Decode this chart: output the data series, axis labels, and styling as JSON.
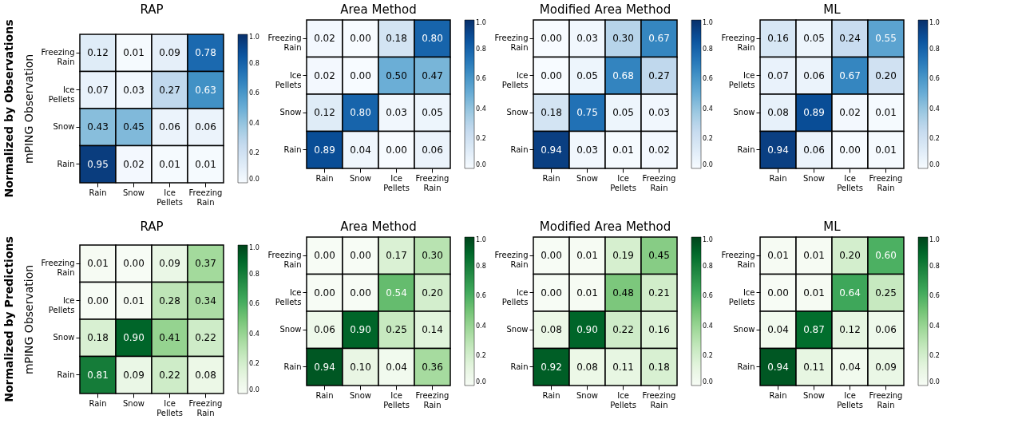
{
  "chart_data": [
    {
      "type": "heatmap",
      "title": "RAP",
      "ylabel": "mPING Observation",
      "annotations": [
        "Normalized by Observations"
      ],
      "categories": [
        "Rain",
        "Snow",
        "Ice Pellets",
        "Freezing Rain"
      ],
      "y_categories": [
        "Freezing Rain",
        "Ice Pellets",
        "Snow",
        "Rain"
      ],
      "data_labels": true,
      "cells": [
        [
          0.12,
          0.01,
          0.09,
          0.78
        ],
        [
          0.07,
          0.03,
          0.27,
          0.63
        ],
        [
          0.43,
          0.45,
          0.06,
          0.06
        ],
        [
          0.95,
          0.02,
          0.01,
          0.01
        ]
      ],
      "cell_labels": [
        [
          "0.12",
          "0.01",
          "0.09",
          "0.78"
        ],
        [
          "0.07",
          "0.03",
          "0.27",
          "0.63"
        ],
        [
          "0.43",
          "0.45",
          "0.06",
          "0.06"
        ],
        [
          "0.95",
          "0.02",
          "0.01",
          "0.01"
        ]
      ],
      "clim": [
        0,
        1
      ],
      "cticks": [
        {
          "value": 0,
          "label": "0.0"
        },
        {
          "value": 0.2,
          "label": "0.2"
        },
        {
          "value": 0.4,
          "label": "0.4"
        },
        {
          "value": 0.6,
          "label": "0.6"
        },
        {
          "value": 0.8,
          "label": "0.8"
        },
        {
          "value": 1,
          "label": "1.0"
        }
      ],
      "colors": [
        "#f7fbff",
        "#deebf7",
        "#c6dbef",
        "#9ecae1",
        "#6baed6",
        "#4292c6",
        "#2171b5",
        "#08519c",
        "#08306b"
      ]
    },
    {
      "type": "heatmap",
      "title": "Area Method",
      "categories": [
        "Rain",
        "Snow",
        "Ice Pellets",
        "Freezing Rain"
      ],
      "y_categories": [
        "Freezing Rain",
        "Ice Pellets",
        "Snow",
        "Rain"
      ],
      "data_labels": true,
      "cells": [
        [
          0.02,
          0.0,
          0.18,
          0.8
        ],
        [
          0.02,
          0.0,
          0.5,
          0.47
        ],
        [
          0.12,
          0.8,
          0.03,
          0.05
        ],
        [
          0.89,
          0.04,
          0.0,
          0.06
        ]
      ],
      "cell_labels": [
        [
          "0.02",
          "0.00",
          "0.18",
          "0.80"
        ],
        [
          "0.02",
          "0.00",
          "0.50",
          "0.47"
        ],
        [
          "0.12",
          "0.80",
          "0.03",
          "0.05"
        ],
        [
          "0.89",
          "0.04",
          "0.00",
          "0.06"
        ]
      ],
      "clim": [
        0,
        1
      ],
      "cticks": [
        {
          "value": 0,
          "label": "0.0"
        },
        {
          "value": 0.2,
          "label": "0.2"
        },
        {
          "value": 0.4,
          "label": "0.4"
        },
        {
          "value": 0.6,
          "label": "0.6"
        },
        {
          "value": 0.8,
          "label": "0.8"
        },
        {
          "value": 1,
          "label": "1.0"
        }
      ],
      "colors": [
        "#f7fbff",
        "#deebf7",
        "#c6dbef",
        "#9ecae1",
        "#6baed6",
        "#4292c6",
        "#2171b5",
        "#08519c",
        "#08306b"
      ]
    },
    {
      "type": "heatmap",
      "title": "Modified Area Method",
      "categories": [
        "Rain",
        "Snow",
        "Ice Pellets",
        "Freezing Rain"
      ],
      "y_categories": [
        "Freezing Rain",
        "Ice Pellets",
        "Snow",
        "Rain"
      ],
      "data_labels": true,
      "cells": [
        [
          0.0,
          0.03,
          0.3,
          0.67
        ],
        [
          0.0,
          0.05,
          0.68,
          0.27
        ],
        [
          0.18,
          0.75,
          0.05,
          0.03
        ],
        [
          0.94,
          0.03,
          0.01,
          0.02
        ]
      ],
      "cell_labels": [
        [
          "0.00",
          "0.03",
          "0.30",
          "0.67"
        ],
        [
          "0.00",
          "0.05",
          "0.68",
          "0.27"
        ],
        [
          "0.18",
          "0.75",
          "0.05",
          "0.03"
        ],
        [
          "0.94",
          "0.03",
          "0.01",
          "0.02"
        ]
      ],
      "clim": [
        0,
        1
      ],
      "cticks": [
        {
          "value": 0,
          "label": "0.0"
        },
        {
          "value": 0.2,
          "label": "0.2"
        },
        {
          "value": 0.4,
          "label": "0.4"
        },
        {
          "value": 0.6,
          "label": "0.6"
        },
        {
          "value": 0.8,
          "label": "0.8"
        },
        {
          "value": 1,
          "label": "1.0"
        }
      ],
      "colors": [
        "#f7fbff",
        "#deebf7",
        "#c6dbef",
        "#9ecae1",
        "#6baed6",
        "#4292c6",
        "#2171b5",
        "#08519c",
        "#08306b"
      ]
    },
    {
      "type": "heatmap",
      "title": "ML",
      "categories": [
        "Rain",
        "Snow",
        "Ice Pellets",
        "Freezing Rain"
      ],
      "y_categories": [
        "Freezing Rain",
        "Ice Pellets",
        "Snow",
        "Rain"
      ],
      "data_labels": true,
      "cells": [
        [
          0.16,
          0.05,
          0.24,
          0.55
        ],
        [
          0.07,
          0.06,
          0.67,
          0.2
        ],
        [
          0.08,
          0.89,
          0.02,
          0.01
        ],
        [
          0.94,
          0.06,
          0.0,
          0.01
        ]
      ],
      "cell_labels": [
        [
          "0.16",
          "0.05",
          "0.24",
          "0.55"
        ],
        [
          "0.07",
          "0.06",
          "0.67",
          "0.20"
        ],
        [
          "0.08",
          "0.89",
          "0.02",
          "0.01"
        ],
        [
          "0.94",
          "0.06",
          "0.00",
          "0.01"
        ]
      ],
      "clim": [
        0,
        1
      ],
      "cticks": [
        {
          "value": 0,
          "label": "0.0"
        },
        {
          "value": 0.2,
          "label": "0.2"
        },
        {
          "value": 0.4,
          "label": "0.4"
        },
        {
          "value": 0.6,
          "label": "0.6"
        },
        {
          "value": 0.8,
          "label": "0.8"
        },
        {
          "value": 1,
          "label": "1.0"
        }
      ],
      "colors": [
        "#f7fbff",
        "#deebf7",
        "#c6dbef",
        "#9ecae1",
        "#6baed6",
        "#4292c6",
        "#2171b5",
        "#08519c",
        "#08306b"
      ]
    },
    {
      "type": "heatmap",
      "title": "RAP",
      "ylabel": "mPING Observation",
      "annotations": [
        "Normalized by Predictions"
      ],
      "categories": [
        "Rain",
        "Snow",
        "Ice Pellets",
        "Freezing Rain"
      ],
      "y_categories": [
        "Freezing Rain",
        "Ice Pellets",
        "Snow",
        "Rain"
      ],
      "data_labels": true,
      "cells": [
        [
          0.01,
          0.0,
          0.09,
          0.37
        ],
        [
          0.0,
          0.01,
          0.28,
          0.34
        ],
        [
          0.18,
          0.9,
          0.41,
          0.22
        ],
        [
          0.81,
          0.09,
          0.22,
          0.08
        ]
      ],
      "cell_labels": [
        [
          "0.01",
          "0.00",
          "0.09",
          "0.37"
        ],
        [
          "0.00",
          "0.01",
          "0.28",
          "0.34"
        ],
        [
          "0.18",
          "0.90",
          "0.41",
          "0.22"
        ],
        [
          "0.81",
          "0.09",
          "0.22",
          "0.08"
        ]
      ],
      "clim": [
        0,
        1
      ],
      "cticks": [
        {
          "value": 0,
          "label": "0.0"
        },
        {
          "value": 0.2,
          "label": "0.2"
        },
        {
          "value": 0.4,
          "label": "0.4"
        },
        {
          "value": 0.6,
          "label": "0.6"
        },
        {
          "value": 0.8,
          "label": "0.8"
        },
        {
          "value": 1,
          "label": "1.0"
        }
      ],
      "colors": [
        "#f7fcf5",
        "#e5f5e0",
        "#c7e9c0",
        "#a1d99b",
        "#74c476",
        "#41ab5d",
        "#238b45",
        "#006d2c",
        "#00441b"
      ]
    },
    {
      "type": "heatmap",
      "title": "Area Method",
      "categories": [
        "Rain",
        "Snow",
        "Ice Pellets",
        "Freezing Rain"
      ],
      "y_categories": [
        "Freezing Rain",
        "Ice Pellets",
        "Snow",
        "Rain"
      ],
      "data_labels": true,
      "cells": [
        [
          0.0,
          0.0,
          0.17,
          0.3
        ],
        [
          0.0,
          0.0,
          0.54,
          0.2
        ],
        [
          0.06,
          0.9,
          0.25,
          0.14
        ],
        [
          0.94,
          0.1,
          0.04,
          0.36
        ]
      ],
      "cell_labels": [
        [
          "0.00",
          "0.00",
          "0.17",
          "0.30"
        ],
        [
          "0.00",
          "0.00",
          "0.54",
          "0.20"
        ],
        [
          "0.06",
          "0.90",
          "0.25",
          "0.14"
        ],
        [
          "0.94",
          "0.10",
          "0.04",
          "0.36"
        ]
      ],
      "clim": [
        0,
        1
      ],
      "cticks": [
        {
          "value": 0,
          "label": "0.0"
        },
        {
          "value": 0.2,
          "label": "0.2"
        },
        {
          "value": 0.4,
          "label": "0.4"
        },
        {
          "value": 0.6,
          "label": "0.6"
        },
        {
          "value": 0.8,
          "label": "0.8"
        },
        {
          "value": 1,
          "label": "1.0"
        }
      ],
      "colors": [
        "#f7fcf5",
        "#e5f5e0",
        "#c7e9c0",
        "#a1d99b",
        "#74c476",
        "#41ab5d",
        "#238b45",
        "#006d2c",
        "#00441b"
      ]
    },
    {
      "type": "heatmap",
      "title": "Modified Area Method",
      "categories": [
        "Rain",
        "Snow",
        "Ice Pellets",
        "Freezing Rain"
      ],
      "y_categories": [
        "Freezing Rain",
        "Ice Pellets",
        "Snow",
        "Rain"
      ],
      "data_labels": true,
      "cells": [
        [
          0.0,
          0.01,
          0.19,
          0.45
        ],
        [
          0.0,
          0.01,
          0.48,
          0.21
        ],
        [
          0.08,
          0.9,
          0.22,
          0.16
        ],
        [
          0.92,
          0.08,
          0.11,
          0.18
        ]
      ],
      "cell_labels": [
        [
          "0.00",
          "0.01",
          "0.19",
          "0.45"
        ],
        [
          "0.00",
          "0.01",
          "0.48",
          "0.21"
        ],
        [
          "0.08",
          "0.90",
          "0.22",
          "0.16"
        ],
        [
          "0.92",
          "0.08",
          "0.11",
          "0.18"
        ]
      ],
      "clim": [
        0,
        1
      ],
      "cticks": [
        {
          "value": 0,
          "label": "0.0"
        },
        {
          "value": 0.2,
          "label": "0.2"
        },
        {
          "value": 0.4,
          "label": "0.4"
        },
        {
          "value": 0.6,
          "label": "0.6"
        },
        {
          "value": 0.8,
          "label": "0.8"
        },
        {
          "value": 1,
          "label": "1.0"
        }
      ],
      "colors": [
        "#f7fcf5",
        "#e5f5e0",
        "#c7e9c0",
        "#a1d99b",
        "#74c476",
        "#41ab5d",
        "#238b45",
        "#006d2c",
        "#00441b"
      ]
    },
    {
      "type": "heatmap",
      "title": "ML",
      "categories": [
        "Rain",
        "Snow",
        "Ice Pellets",
        "Freezing Rain"
      ],
      "y_categories": [
        "Freezing Rain",
        "Ice Pellets",
        "Snow",
        "Rain"
      ],
      "data_labels": true,
      "cells": [
        [
          0.01,
          0.01,
          0.2,
          0.6
        ],
        [
          0.0,
          0.01,
          0.64,
          0.25
        ],
        [
          0.04,
          0.87,
          0.12,
          0.06
        ],
        [
          0.94,
          0.11,
          0.04,
          0.09
        ]
      ],
      "cell_labels": [
        [
          "0.01",
          "0.01",
          "0.20",
          "0.60"
        ],
        [
          "0.00",
          "0.01",
          "0.64",
          "0.25"
        ],
        [
          "0.04",
          "0.87",
          "0.12",
          "0.06"
        ],
        [
          "0.94",
          "0.11",
          "0.04",
          "0.09"
        ]
      ],
      "clim": [
        0,
        1
      ],
      "cticks": [
        {
          "value": 0,
          "label": "0.0"
        },
        {
          "value": 0.2,
          "label": "0.2"
        },
        {
          "value": 0.4,
          "label": "0.4"
        },
        {
          "value": 0.6,
          "label": "0.6"
        },
        {
          "value": 0.8,
          "label": "0.8"
        },
        {
          "value": 1,
          "label": "1.0"
        }
      ],
      "colors": [
        "#f7fcf5",
        "#e5f5e0",
        "#c7e9c0",
        "#a1d99b",
        "#74c476",
        "#41ab5d",
        "#238b45",
        "#006d2c",
        "#00441b"
      ]
    }
  ]
}
